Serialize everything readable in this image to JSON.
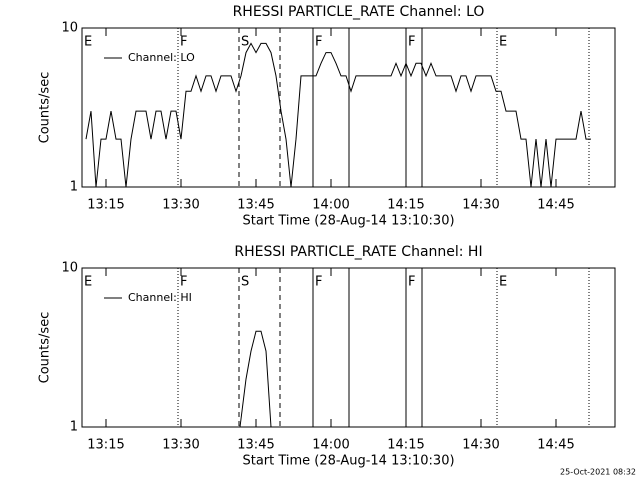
{
  "chart_data": [
    {
      "type": "line",
      "title": "RHESSI PARTICLE_RATE Channel: LO",
      "xlabel": "Start Time (28-Aug-14 13:10:30)",
      "ylabel": "Counts/sec",
      "xlim": [
        790.2,
        896.8
      ],
      "xticks": [
        {
          "value": 795,
          "label": "13:15"
        },
        {
          "value": 810,
          "label": "13:30"
        },
        {
          "value": 825,
          "label": "13:45"
        },
        {
          "value": 840,
          "label": "14:00"
        },
        {
          "value": 855,
          "label": "14:15"
        },
        {
          "value": 870,
          "label": "14:30"
        },
        {
          "value": 885,
          "label": "14:45"
        }
      ],
      "ylim": [
        1,
        10
      ],
      "yticks": [
        1,
        10
      ],
      "log_y": true,
      "series": [
        {
          "name": "Channel: LO",
          "color": "#000000",
          "x": [
            791,
            792,
            793,
            794,
            795,
            796,
            797,
            798,
            799,
            800,
            801,
            802,
            803,
            804,
            805,
            806,
            807,
            808,
            809,
            810,
            811,
            812,
            813,
            814,
            815,
            816,
            817,
            818,
            819,
            820,
            821,
            822,
            823,
            824,
            825,
            826,
            827,
            828,
            829,
            830,
            831,
            832,
            833,
            834,
            835,
            836,
            837,
            838,
            839,
            840,
            841,
            842,
            843,
            844,
            845,
            846,
            847,
            848,
            849,
            850,
            851,
            852,
            853,
            854,
            855,
            856,
            857,
            858,
            859,
            860,
            861,
            862,
            863,
            864,
            865,
            866,
            867,
            868,
            869,
            870,
            871,
            872,
            873,
            874,
            875,
            876,
            877,
            878,
            879,
            880,
            881,
            882,
            883,
            884,
            885,
            886,
            887,
            888,
            889,
            890,
            891,
            892
          ],
          "values": [
            2,
            3,
            1,
            2,
            2,
            3,
            2,
            2,
            1,
            2,
            3,
            3,
            3,
            2,
            3,
            3,
            2,
            3,
            3,
            2,
            4,
            4,
            5,
            4,
            5,
            5,
            4,
            5,
            5,
            5,
            4,
            5,
            7,
            8,
            7,
            8,
            8,
            7,
            5,
            3,
            2,
            1,
            2,
            5,
            5,
            5,
            5,
            6,
            7,
            7,
            6,
            5,
            5,
            4,
            5,
            5,
            5,
            5,
            5,
            5,
            5,
            5,
            6,
            5,
            6,
            5,
            6,
            6,
            5,
            6,
            5,
            5,
            5,
            5,
            4,
            5,
            5,
            4,
            5,
            5,
            5,
            5,
            4,
            4,
            3,
            3,
            3,
            2,
            2,
            1,
            2,
            1,
            2,
            1,
            2,
            2,
            2,
            2,
            2,
            3,
            2,
            2
          ]
        }
      ],
      "events": [
        {
          "x": 790.2,
          "style": "dotted",
          "label": "E"
        },
        {
          "x": 809.4,
          "style": "dotted",
          "label": "F"
        },
        {
          "x": 821.6,
          "style": "dashed",
          "label": "S"
        },
        {
          "x": 829.8,
          "style": "dashed",
          "label": null
        },
        {
          "x": 836.4,
          "style": "solid",
          "label": "F"
        },
        {
          "x": 843.6,
          "style": "solid",
          "label": null
        },
        {
          "x": 855.0,
          "style": "solid",
          "label": "F"
        },
        {
          "x": 858.2,
          "style": "solid",
          "label": null
        },
        {
          "x": 873.2,
          "style": "dotted",
          "label": "E"
        },
        {
          "x": 891.6,
          "style": "dotted",
          "label": null
        }
      ]
    },
    {
      "type": "line",
      "title": "RHESSI PARTICLE_RATE Channel: HI",
      "xlabel": "Start Time (28-Aug-14 13:10:30)",
      "ylabel": "Counts/sec",
      "xlim": [
        790.2,
        896.8
      ],
      "xticks": [
        {
          "value": 795,
          "label": "13:15"
        },
        {
          "value": 810,
          "label": "13:30"
        },
        {
          "value": 825,
          "label": "13:45"
        },
        {
          "value": 840,
          "label": "14:00"
        },
        {
          "value": 855,
          "label": "14:15"
        },
        {
          "value": 870,
          "label": "14:30"
        },
        {
          "value": 885,
          "label": "14:45"
        }
      ],
      "ylim": [
        1,
        10
      ],
      "yticks": [
        1,
        10
      ],
      "log_y": true,
      "series": [
        {
          "name": "Channel: HI",
          "color": "#000000",
          "x": [
            821.8,
            823,
            824,
            825,
            826,
            827,
            828
          ],
          "values": [
            1,
            2,
            3,
            4,
            4,
            3,
            1
          ]
        }
      ],
      "events": [
        {
          "x": 790.2,
          "style": "dotted",
          "label": "E"
        },
        {
          "x": 809.4,
          "style": "dotted",
          "label": "F"
        },
        {
          "x": 821.6,
          "style": "dashed",
          "label": "S"
        },
        {
          "x": 829.8,
          "style": "dashed",
          "label": null
        },
        {
          "x": 836.4,
          "style": "solid",
          "label": "F"
        },
        {
          "x": 843.6,
          "style": "solid",
          "label": null
        },
        {
          "x": 855.0,
          "style": "solid",
          "label": "F"
        },
        {
          "x": 858.2,
          "style": "solid",
          "label": null
        },
        {
          "x": 873.2,
          "style": "dotted",
          "label": "E"
        },
        {
          "x": 891.6,
          "style": "dotted",
          "label": null
        }
      ]
    }
  ],
  "footer": "25-Oct-2021 08:32"
}
